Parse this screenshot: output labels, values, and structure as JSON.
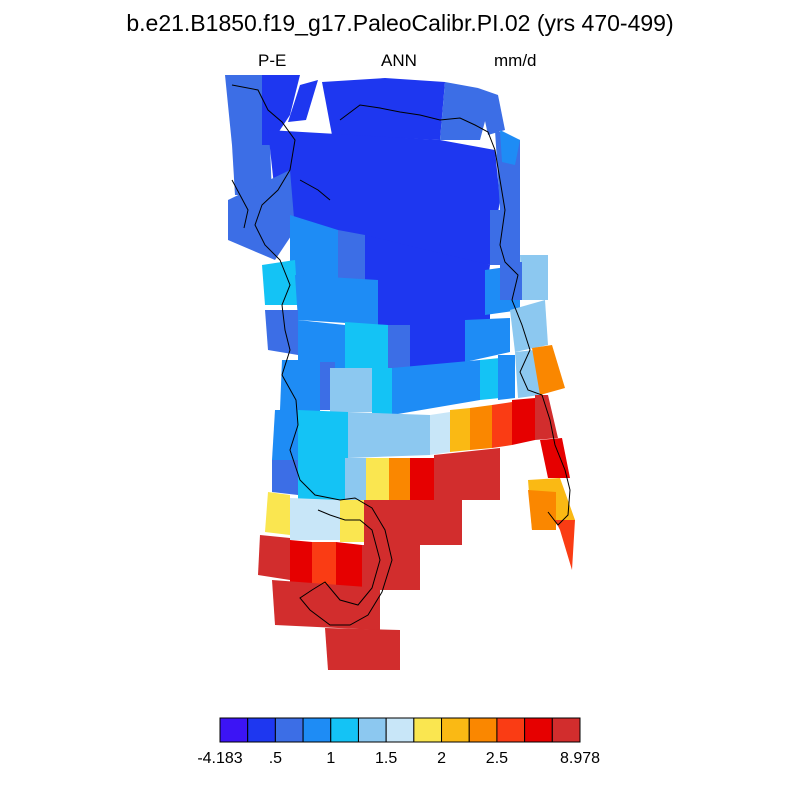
{
  "title": "b.e21.B1850.f19_g17.PaleoCalibr.PI.02 (yrs 470-499)",
  "subtitle_left": "P-E",
  "subtitle_center": "ANN",
  "subtitle_right": "mm/d",
  "colorbar": {
    "colors": [
      "#3c14f5",
      "#1e37f0",
      "#3c6ee6",
      "#1e8cf5",
      "#14c3f5",
      "#8cc8f0",
      "#c8e6f8",
      "#fae650",
      "#fab914",
      "#fa8700",
      "#fa3c14",
      "#e60000",
      "#d22d2d"
    ],
    "labels": [
      "-4.183",
      ".5",
      "1",
      "1.5",
      "2",
      "2.5",
      "8.978"
    ]
  }
}
